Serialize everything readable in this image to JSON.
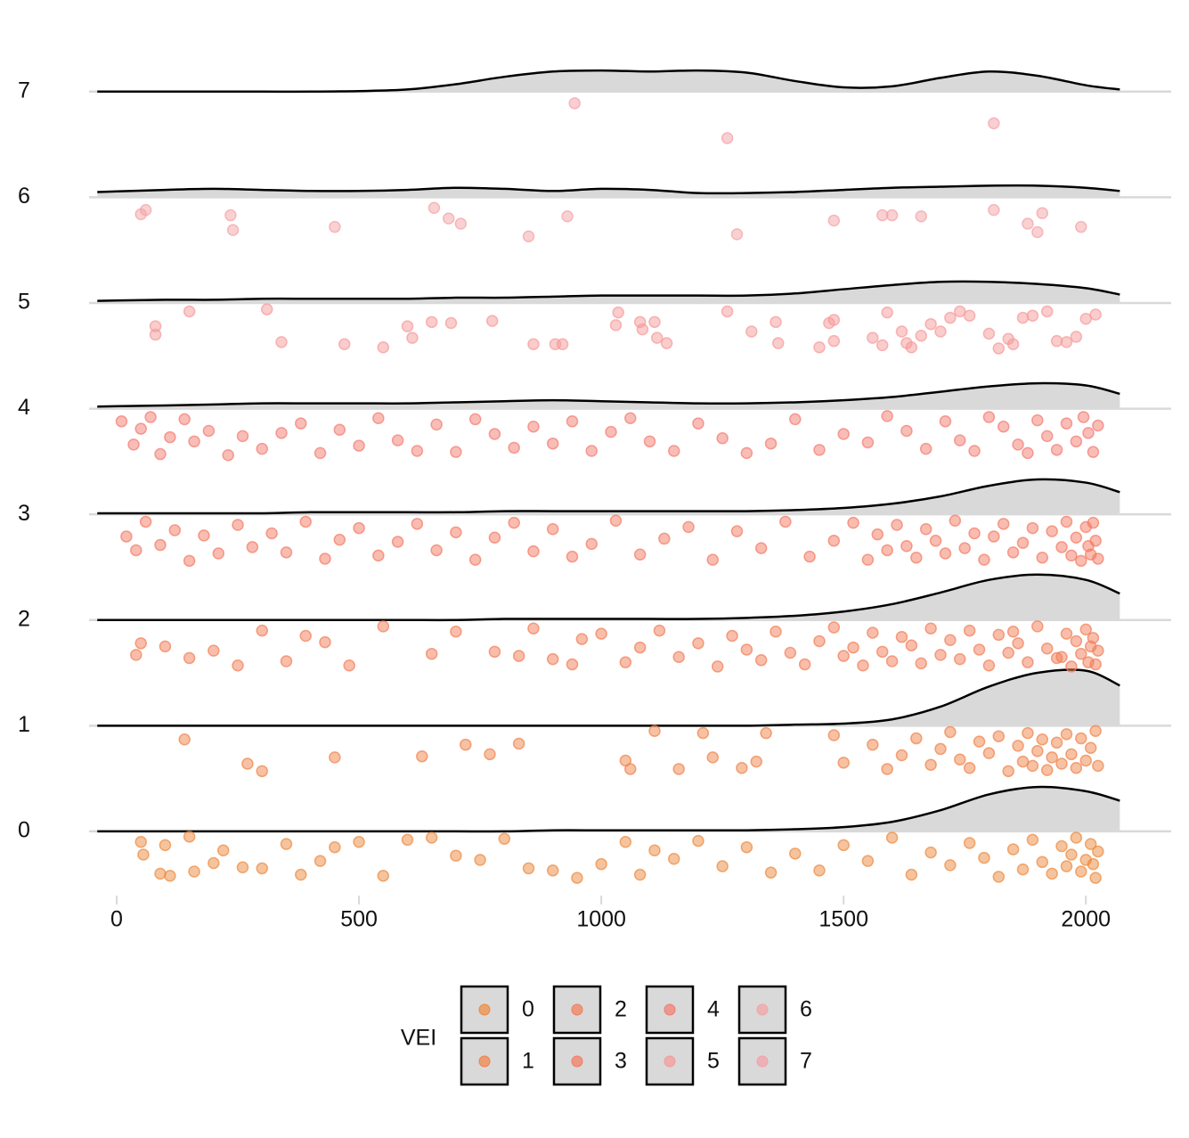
{
  "chart_data": {
    "type": "ridgeline",
    "legend_title": "VEI",
    "xlim": [
      -57,
      2176
    ],
    "xticks": [
      0,
      500,
      1000,
      1500,
      2000
    ],
    "ylim": [
      -0.65,
      7.85
    ],
    "yticks": [
      0,
      1,
      2,
      3,
      4,
      5,
      6,
      7
    ],
    "grid": true,
    "density_x": [
      -40,
      100,
      200,
      300,
      400,
      500,
      600,
      700,
      800,
      900,
      1000,
      1100,
      1200,
      1300,
      1400,
      1500,
      1600,
      1700,
      1800,
      1900,
      2000,
      2070
    ],
    "series": [
      {
        "name": "0",
        "color": "#ec8a3e",
        "density": [
          0,
          0,
          0,
          0,
          0,
          0,
          0,
          0,
          0,
          0.01,
          0.01,
          0.01,
          0.01,
          0.01,
          0.02,
          0.04,
          0.09,
          0.2,
          0.35,
          0.42,
          0.38,
          0.29
        ],
        "x": [
          50,
          55,
          90,
          100,
          110,
          150,
          160,
          200,
          220,
          260,
          300,
          350,
          380,
          420,
          450,
          500,
          550,
          600,
          650,
          700,
          750,
          800,
          850,
          900,
          950,
          1000,
          1050,
          1080,
          1110,
          1150,
          1200,
          1250,
          1300,
          1350,
          1400,
          1450,
          1500,
          1550,
          1600,
          1640,
          1680,
          1720,
          1760,
          1790,
          1820,
          1850,
          1870,
          1890,
          1910,
          1930,
          1950,
          1960,
          1970,
          1980,
          1990,
          2000,
          2010,
          2020,
          2025,
          2015
        ],
        "values": [
          -0.1,
          -0.22,
          -0.4,
          -0.13,
          -0.42,
          -0.05,
          -0.38,
          -0.3,
          -0.18,
          -0.34,
          -0.35,
          -0.12,
          -0.41,
          -0.28,
          -0.15,
          -0.1,
          -0.42,
          -0.08,
          -0.06,
          -0.23,
          -0.27,
          -0.07,
          -0.35,
          -0.37,
          -0.44,
          -0.31,
          -0.1,
          -0.41,
          -0.18,
          -0.26,
          -0.09,
          -0.33,
          -0.15,
          -0.39,
          -0.21,
          -0.37,
          -0.13,
          -0.28,
          -0.06,
          -0.41,
          -0.2,
          -0.32,
          -0.11,
          -0.25,
          -0.43,
          -0.17,
          -0.36,
          -0.08,
          -0.29,
          -0.4,
          -0.14,
          -0.33,
          -0.22,
          -0.06,
          -0.38,
          -0.27,
          -0.12,
          -0.44,
          -0.19,
          -0.31
        ]
      },
      {
        "name": "1",
        "color": "#ef8349",
        "density": [
          0,
          0,
          0,
          0,
          0,
          0,
          0,
          0,
          0,
          0,
          0,
          0,
          0,
          0,
          0.01,
          0.02,
          0.06,
          0.18,
          0.37,
          0.5,
          0.52,
          0.38
        ],
        "x": [
          140,
          270,
          300,
          450,
          630,
          720,
          770,
          830,
          1050,
          1060,
          1110,
          1160,
          1210,
          1230,
          1290,
          1320,
          1340,
          1480,
          1500,
          1560,
          1590,
          1620,
          1650,
          1680,
          1700,
          1720,
          1740,
          1760,
          1780,
          1800,
          1820,
          1840,
          1860,
          1870,
          1880,
          1890,
          1900,
          1910,
          1920,
          1930,
          1940,
          1950,
          1960,
          1970,
          1980,
          1990,
          2000,
          2010,
          2020,
          2025
        ],
        "values": [
          0.87,
          0.64,
          0.57,
          0.7,
          0.71,
          0.82,
          0.73,
          0.83,
          0.67,
          0.59,
          0.95,
          0.59,
          0.93,
          0.7,
          0.6,
          0.66,
          0.93,
          0.91,
          0.65,
          0.82,
          0.59,
          0.72,
          0.88,
          0.63,
          0.78,
          0.94,
          0.68,
          0.6,
          0.85,
          0.74,
          0.9,
          0.57,
          0.81,
          0.66,
          0.93,
          0.62,
          0.76,
          0.87,
          0.58,
          0.7,
          0.84,
          0.64,
          0.92,
          0.73,
          0.6,
          0.88,
          0.67,
          0.79,
          0.95,
          0.62
        ]
      },
      {
        "name": "2",
        "color": "#f27d57",
        "density": [
          0,
          0,
          0,
          0,
          0,
          0,
          0,
          0,
          0.01,
          0.01,
          0.01,
          0.01,
          0.01,
          0.02,
          0.04,
          0.08,
          0.15,
          0.26,
          0.38,
          0.43,
          0.38,
          0.25
        ],
        "x": [
          40,
          50,
          100,
          150,
          200,
          250,
          300,
          350,
          390,
          430,
          480,
          550,
          650,
          700,
          780,
          830,
          860,
          900,
          940,
          960,
          1000,
          1050,
          1080,
          1120,
          1160,
          1200,
          1240,
          1270,
          1300,
          1330,
          1360,
          1390,
          1420,
          1450,
          1480,
          1500,
          1520,
          1540,
          1560,
          1580,
          1600,
          1620,
          1640,
          1660,
          1680,
          1700,
          1720,
          1740,
          1760,
          1780,
          1800,
          1820,
          1840,
          1860,
          1880,
          1900,
          1920,
          1940,
          1960,
          1970,
          1980,
          1990,
          2000,
          2005,
          2010,
          2015,
          2020,
          2025,
          1950,
          1850
        ],
        "values": [
          1.67,
          1.78,
          1.75,
          1.64,
          1.71,
          1.57,
          1.9,
          1.61,
          1.85,
          1.79,
          1.57,
          1.94,
          1.68,
          1.89,
          1.7,
          1.66,
          1.92,
          1.63,
          1.58,
          1.82,
          1.87,
          1.6,
          1.74,
          1.9,
          1.65,
          1.78,
          1.56,
          1.85,
          1.72,
          1.62,
          1.89,
          1.69,
          1.58,
          1.8,
          1.93,
          1.66,
          1.74,
          1.57,
          1.88,
          1.7,
          1.61,
          1.84,
          1.76,
          1.59,
          1.92,
          1.67,
          1.81,
          1.63,
          1.9,
          1.72,
          1.57,
          1.86,
          1.69,
          1.78,
          1.6,
          1.94,
          1.73,
          1.64,
          1.87,
          1.56,
          1.8,
          1.68,
          1.91,
          1.6,
          1.75,
          1.83,
          1.58,
          1.71,
          1.65,
          1.89
        ]
      },
      {
        "name": "3",
        "color": "#f47a63",
        "density": [
          0.01,
          0.01,
          0.01,
          0.01,
          0.02,
          0.02,
          0.02,
          0.02,
          0.03,
          0.03,
          0.03,
          0.03,
          0.03,
          0.03,
          0.04,
          0.06,
          0.1,
          0.17,
          0.27,
          0.33,
          0.3,
          0.21
        ],
        "x": [
          20,
          40,
          60,
          90,
          120,
          150,
          180,
          210,
          250,
          280,
          320,
          350,
          390,
          430,
          460,
          500,
          540,
          580,
          620,
          660,
          700,
          740,
          780,
          820,
          860,
          900,
          940,
          980,
          1030,
          1080,
          1130,
          1180,
          1230,
          1280,
          1330,
          1380,
          1430,
          1480,
          1520,
          1550,
          1570,
          1590,
          1610,
          1630,
          1650,
          1670,
          1690,
          1710,
          1730,
          1750,
          1770,
          1790,
          1810,
          1830,
          1850,
          1870,
          1890,
          1910,
          1930,
          1950,
          1960,
          1970,
          1980,
          1990,
          2000,
          2005,
          2010,
          2015,
          2020,
          2025
        ],
        "values": [
          2.79,
          2.66,
          2.93,
          2.71,
          2.85,
          2.56,
          2.8,
          2.63,
          2.9,
          2.69,
          2.82,
          2.64,
          2.93,
          2.58,
          2.76,
          2.87,
          2.61,
          2.74,
          2.91,
          2.66,
          2.83,
          2.57,
          2.78,
          2.92,
          2.65,
          2.86,
          2.6,
          2.72,
          2.94,
          2.62,
          2.77,
          2.88,
          2.57,
          2.84,
          2.68,
          2.93,
          2.6,
          2.75,
          2.92,
          2.57,
          2.81,
          2.66,
          2.9,
          2.7,
          2.59,
          2.86,
          2.75,
          2.63,
          2.94,
          2.68,
          2.82,
          2.57,
          2.79,
          2.91,
          2.64,
          2.73,
          2.87,
          2.59,
          2.84,
          2.69,
          2.93,
          2.61,
          2.78,
          2.56,
          2.88,
          2.7,
          2.62,
          2.92,
          2.75,
          2.58
        ]
      },
      {
        "name": "4",
        "color": "#f47b70",
        "density": [
          0.02,
          0.03,
          0.04,
          0.05,
          0.05,
          0.05,
          0.05,
          0.06,
          0.07,
          0.08,
          0.07,
          0.06,
          0.05,
          0.05,
          0.06,
          0.08,
          0.11,
          0.16,
          0.21,
          0.24,
          0.22,
          0.14
        ],
        "x": [
          10,
          35,
          50,
          70,
          90,
          110,
          140,
          160,
          190,
          230,
          260,
          300,
          340,
          380,
          420,
          460,
          500,
          540,
          580,
          620,
          660,
          700,
          740,
          780,
          820,
          860,
          900,
          940,
          980,
          1020,
          1060,
          1100,
          1150,
          1200,
          1250,
          1300,
          1350,
          1400,
          1450,
          1500,
          1550,
          1590,
          1630,
          1670,
          1710,
          1740,
          1770,
          1800,
          1830,
          1860,
          1880,
          1900,
          1920,
          1940,
          1960,
          1980,
          1995,
          2005,
          2015,
          2025
        ],
        "values": [
          3.88,
          3.66,
          3.81,
          3.92,
          3.57,
          3.73,
          3.9,
          3.69,
          3.79,
          3.56,
          3.74,
          3.62,
          3.77,
          3.86,
          3.58,
          3.8,
          3.65,
          3.91,
          3.7,
          3.6,
          3.85,
          3.59,
          3.9,
          3.76,
          3.63,
          3.83,
          3.67,
          3.88,
          3.6,
          3.78,
          3.91,
          3.69,
          3.6,
          3.86,
          3.72,
          3.58,
          3.67,
          3.9,
          3.61,
          3.76,
          3.68,
          3.93,
          3.79,
          3.62,
          3.88,
          3.7,
          3.6,
          3.92,
          3.83,
          3.66,
          3.58,
          3.89,
          3.74,
          3.61,
          3.86,
          3.69,
          3.92,
          3.77,
          3.59,
          3.84
        ]
      },
      {
        "name": "5",
        "color": "#f59a9a",
        "density": [
          0.02,
          0.03,
          0.03,
          0.04,
          0.04,
          0.04,
          0.04,
          0.05,
          0.05,
          0.06,
          0.07,
          0.07,
          0.07,
          0.07,
          0.09,
          0.13,
          0.17,
          0.2,
          0.2,
          0.18,
          0.14,
          0.08
        ],
        "x": [
          80,
          80,
          150,
          310,
          340,
          470,
          550,
          600,
          610,
          650,
          690,
          775,
          860,
          905,
          920,
          1030,
          1035,
          1080,
          1085,
          1110,
          1115,
          1135,
          1260,
          1310,
          1360,
          1365,
          1450,
          1470,
          1480,
          1480,
          1560,
          1580,
          1590,
          1620,
          1630,
          1640,
          1660,
          1680,
          1700,
          1720,
          1740,
          1760,
          1800,
          1820,
          1840,
          1850,
          1870,
          1890,
          1920,
          1940,
          1960,
          1980,
          2000,
          2020
        ],
        "values": [
          4.78,
          4.7,
          4.92,
          4.94,
          4.63,
          4.61,
          4.58,
          4.78,
          4.67,
          4.82,
          4.81,
          4.83,
          4.61,
          4.61,
          4.61,
          4.79,
          4.91,
          4.82,
          4.75,
          4.82,
          4.67,
          4.62,
          4.92,
          4.73,
          4.82,
          4.62,
          4.58,
          4.81,
          4.64,
          4.84,
          4.67,
          4.6,
          4.91,
          4.73,
          4.62,
          4.58,
          4.69,
          4.8,
          4.73,
          4.86,
          4.92,
          4.88,
          4.71,
          4.57,
          4.66,
          4.61,
          4.86,
          4.88,
          4.92,
          4.64,
          4.63,
          4.68,
          4.85,
          4.89
        ]
      },
      {
        "name": "6",
        "color": "#f4a3a5",
        "density": [
          0.05,
          0.07,
          0.08,
          0.07,
          0.06,
          0.06,
          0.07,
          0.09,
          0.08,
          0.06,
          0.08,
          0.07,
          0.04,
          0.04,
          0.05,
          0.07,
          0.09,
          0.1,
          0.11,
          0.11,
          0.09,
          0.06
        ],
        "x": [
          50,
          60,
          235,
          240,
          450,
          655,
          685,
          710,
          850,
          930,
          1280,
          1480,
          1580,
          1600,
          1660,
          1810,
          1880,
          1900,
          1910,
          1990
        ],
        "values": [
          5.84,
          5.88,
          5.83,
          5.69,
          5.72,
          5.9,
          5.8,
          5.75,
          5.63,
          5.82,
          5.65,
          5.78,
          5.83,
          5.83,
          5.82,
          5.88,
          5.75,
          5.67,
          5.85,
          5.72
        ]
      },
      {
        "name": "7",
        "color": "#f4a0a8",
        "density": [
          0,
          0,
          0,
          0,
          0,
          0.005,
          0.02,
          0.07,
          0.14,
          0.19,
          0.2,
          0.19,
          0.2,
          0.18,
          0.1,
          0.04,
          0.05,
          0.13,
          0.19,
          0.15,
          0.06,
          0.02
        ],
        "x": [
          945,
          1260,
          1810
        ],
        "values": [
          6.89,
          6.56,
          6.7
        ]
      }
    ]
  }
}
